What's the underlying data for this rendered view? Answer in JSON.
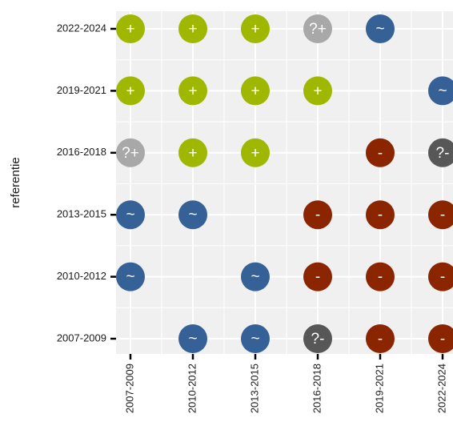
{
  "chart_data": {
    "type": "point",
    "ylabel": "referentie",
    "xcategories": [
      "2007-2009",
      "2010-2012",
      "2013-2015",
      "2016-2018",
      "2019-2021",
      "2022-2024"
    ],
    "ycategories": [
      "2007-2009",
      "2010-2012",
      "2013-2015",
      "2016-2018",
      "2019-2021",
      "2022-2024"
    ],
    "grid": true,
    "points": [
      {
        "x": "2007-2009",
        "y": "2022-2024",
        "label": "+",
        "color": "#a0b700"
      },
      {
        "x": "2010-2012",
        "y": "2022-2024",
        "label": "+",
        "color": "#a0b700"
      },
      {
        "x": "2013-2015",
        "y": "2022-2024",
        "label": "+",
        "color": "#a0b700"
      },
      {
        "x": "2016-2018",
        "y": "2022-2024",
        "label": "?+",
        "color": "#a8a8a8"
      },
      {
        "x": "2019-2021",
        "y": "2022-2024",
        "label": "~",
        "color": "#356196"
      },
      {
        "x": "2007-2009",
        "y": "2019-2021",
        "label": "+",
        "color": "#a0b700"
      },
      {
        "x": "2010-2012",
        "y": "2019-2021",
        "label": "+",
        "color": "#a0b700"
      },
      {
        "x": "2013-2015",
        "y": "2019-2021",
        "label": "+",
        "color": "#a0b700"
      },
      {
        "x": "2016-2018",
        "y": "2019-2021",
        "label": "+",
        "color": "#a0b700"
      },
      {
        "x": "2022-2024",
        "y": "2019-2021",
        "label": "~",
        "color": "#356196"
      },
      {
        "x": "2007-2009",
        "y": "2016-2018",
        "label": "?+",
        "color": "#a8a8a8"
      },
      {
        "x": "2010-2012",
        "y": "2016-2018",
        "label": "+",
        "color": "#a0b700"
      },
      {
        "x": "2013-2015",
        "y": "2016-2018",
        "label": "+",
        "color": "#a0b700"
      },
      {
        "x": "2019-2021",
        "y": "2016-2018",
        "label": "-",
        "color": "#8b2500"
      },
      {
        "x": "2022-2024",
        "y": "2016-2018",
        "label": "?-",
        "color": "#575757"
      },
      {
        "x": "2007-2009",
        "y": "2013-2015",
        "label": "~",
        "color": "#356196"
      },
      {
        "x": "2010-2012",
        "y": "2013-2015",
        "label": "~",
        "color": "#356196"
      },
      {
        "x": "2016-2018",
        "y": "2013-2015",
        "label": "-",
        "color": "#8b2500"
      },
      {
        "x": "2019-2021",
        "y": "2013-2015",
        "label": "-",
        "color": "#8b2500"
      },
      {
        "x": "2022-2024",
        "y": "2013-2015",
        "label": "-",
        "color": "#8b2500"
      },
      {
        "x": "2007-2009",
        "y": "2010-2012",
        "label": "~",
        "color": "#356196"
      },
      {
        "x": "2013-2015",
        "y": "2010-2012",
        "label": "~",
        "color": "#356196"
      },
      {
        "x": "2016-2018",
        "y": "2010-2012",
        "label": "-",
        "color": "#8b2500"
      },
      {
        "x": "2019-2021",
        "y": "2010-2012",
        "label": "-",
        "color": "#8b2500"
      },
      {
        "x": "2022-2024",
        "y": "2010-2012",
        "label": "-",
        "color": "#8b2500"
      },
      {
        "x": "2010-2012",
        "y": "2007-2009",
        "label": "~",
        "color": "#356196"
      },
      {
        "x": "2013-2015",
        "y": "2007-2009",
        "label": "~",
        "color": "#356196"
      },
      {
        "x": "2016-2018",
        "y": "2007-2009",
        "label": "?-",
        "color": "#575757"
      },
      {
        "x": "2019-2021",
        "y": "2007-2009",
        "label": "-",
        "color": "#8b2500"
      },
      {
        "x": "2022-2024",
        "y": "2007-2009",
        "label": "-",
        "color": "#8b2500"
      }
    ]
  }
}
